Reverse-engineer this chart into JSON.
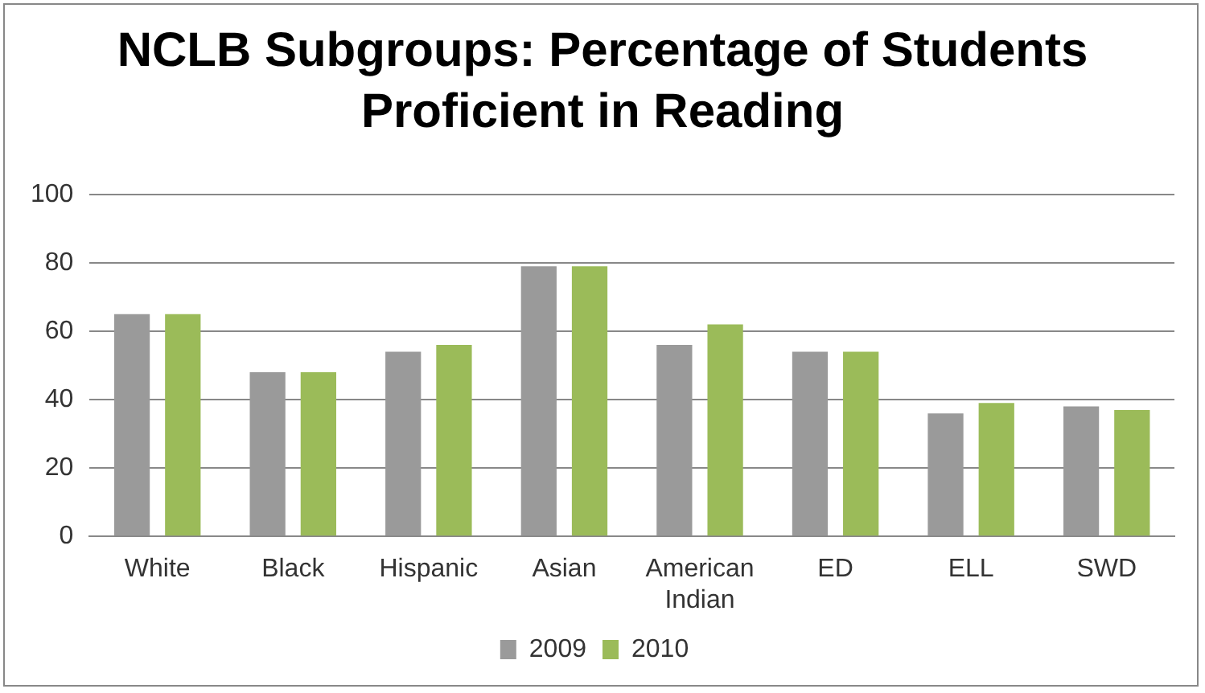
{
  "chart_data": {
    "type": "bar",
    "title": "NCLB Subgroups:  Percentage of Students Proficient in Reading",
    "categories": [
      "White",
      "Black",
      "Hispanic",
      "Asian",
      "American Indian",
      "ED",
      "ELL",
      "SWD"
    ],
    "series": [
      {
        "name": "2009",
        "color": "#9a9a9a",
        "values": [
          65,
          48,
          54,
          79,
          56,
          54,
          36,
          38
        ]
      },
      {
        "name": "2010",
        "color": "#9bbb59",
        "values": [
          65,
          48,
          56,
          79,
          62,
          54,
          39,
          37
        ]
      }
    ],
    "ylim": [
      0,
      100
    ],
    "yticks": [
      0,
      20,
      40,
      60,
      80,
      100
    ],
    "grid": "y",
    "legend": "bottom"
  }
}
